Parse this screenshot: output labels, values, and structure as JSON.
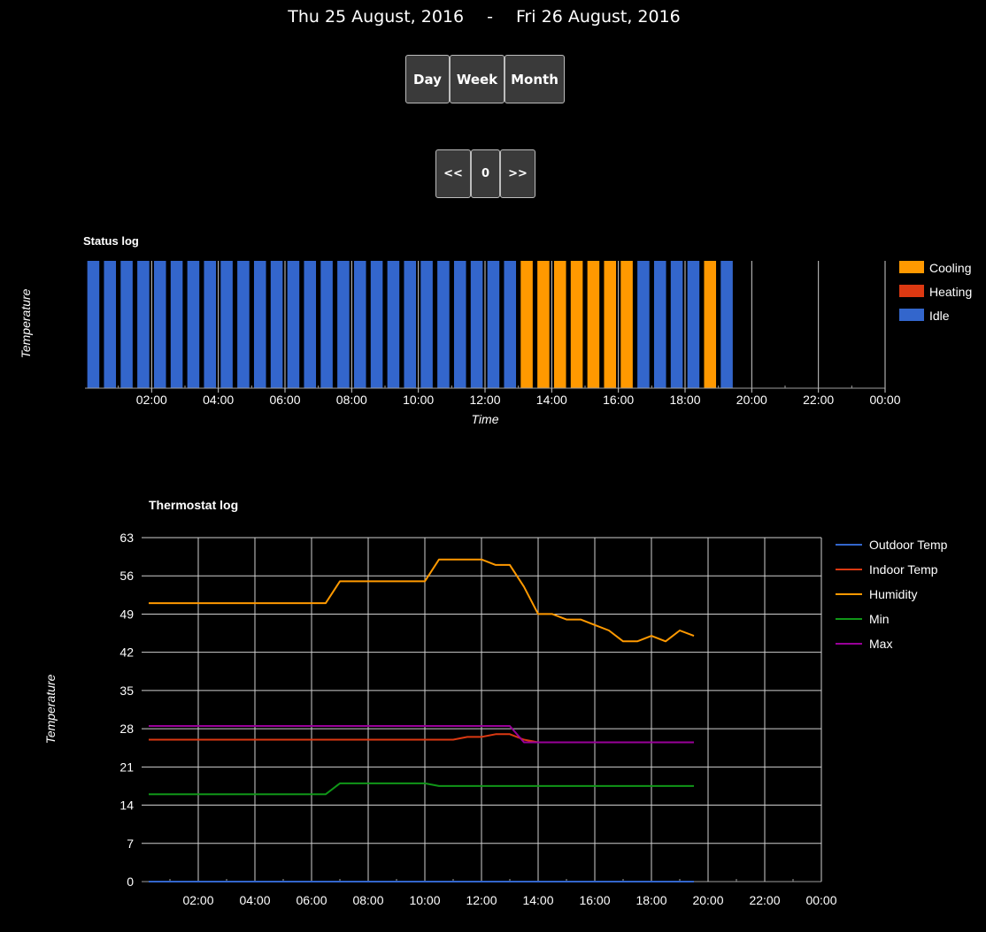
{
  "header": {
    "start_date": "Thu 25 August, 2016",
    "separator": "-",
    "end_date": "Fri 26 August, 2016"
  },
  "range_buttons": [
    "Day",
    "Week",
    "Month"
  ],
  "nav_buttons": {
    "prev": "<<",
    "offset": "0",
    "next": ">>"
  },
  "colors": {
    "cooling": "#ff9900",
    "heating": "#dc3912",
    "idle": "#3366cc",
    "outdoor": "#3366cc",
    "indoor": "#dc3912",
    "humidity": "#ff9900",
    "min": "#109618",
    "max": "#990099"
  },
  "chart_data": [
    {
      "type": "bar",
      "title": "Status log",
      "xlabel": "Time",
      "ylabel": "Temperature",
      "x_ticks": [
        "02:00",
        "04:00",
        "06:00",
        "08:00",
        "10:00",
        "12:00",
        "14:00",
        "16:00",
        "18:00",
        "20:00",
        "22:00",
        "00:00"
      ],
      "x_range_hours": [
        0,
        24
      ],
      "bar_start_hour": 0.25,
      "bar_step_hours": 0.5,
      "statuses": [
        "Idle",
        "Idle",
        "Idle",
        "Idle",
        "Idle",
        "Idle",
        "Idle",
        "Idle",
        "Idle",
        "Idle",
        "Idle",
        "Idle",
        "Idle",
        "Idle",
        "Idle",
        "Idle",
        "Idle",
        "Idle",
        "Idle",
        "Idle",
        "Idle",
        "Idle",
        "Idle",
        "Idle",
        "Idle",
        "Idle",
        "Cooling",
        "Cooling",
        "Cooling",
        "Cooling",
        "Cooling",
        "Cooling",
        "Cooling",
        "Idle",
        "Idle",
        "Idle",
        "Idle",
        "Cooling",
        "Idle"
      ],
      "legend": [
        "Cooling",
        "Heating",
        "Idle"
      ]
    },
    {
      "type": "line",
      "title": "Thermostat log",
      "xlabel": "",
      "ylabel": "Temperature",
      "x_ticks": [
        "02:00",
        "04:00",
        "06:00",
        "08:00",
        "10:00",
        "12:00",
        "14:00",
        "16:00",
        "18:00",
        "20:00",
        "22:00",
        "00:00"
      ],
      "x_range_hours": [
        0,
        24
      ],
      "y_ticks": [
        0,
        7,
        14,
        21,
        28,
        35,
        42,
        49,
        56,
        63
      ],
      "ylim": [
        0,
        63
      ],
      "series": [
        {
          "name": "Outdoor Temp",
          "key": "outdoor",
          "points": [
            [
              0.25,
              0
            ],
            [
              19.5,
              0
            ]
          ]
        },
        {
          "name": "Indoor Temp",
          "key": "indoor",
          "points": [
            [
              0.25,
              26
            ],
            [
              11,
              26
            ],
            [
              11.5,
              26.5
            ],
            [
              12,
              26.5
            ],
            [
              12.5,
              27
            ],
            [
              13,
              27
            ],
            [
              13.5,
              26
            ],
            [
              14,
              25.5
            ],
            [
              19.5,
              25.5
            ]
          ]
        },
        {
          "name": "Humidity",
          "key": "humidity",
          "points": [
            [
              0.25,
              51
            ],
            [
              6.5,
              51
            ],
            [
              7,
              55
            ],
            [
              10,
              55
            ],
            [
              10.5,
              59
            ],
            [
              12,
              59
            ],
            [
              12.5,
              58
            ],
            [
              13,
              58
            ],
            [
              13.5,
              54
            ],
            [
              14,
              49
            ],
            [
              14.5,
              49
            ],
            [
              15,
              48
            ],
            [
              15.5,
              48
            ],
            [
              16,
              47
            ],
            [
              16.5,
              46
            ],
            [
              17,
              44
            ],
            [
              17.5,
              44
            ],
            [
              18,
              45
            ],
            [
              18.5,
              44
            ],
            [
              19,
              46
            ],
            [
              19.5,
              45
            ]
          ]
        },
        {
          "name": "Min",
          "key": "min",
          "points": [
            [
              0.25,
              16
            ],
            [
              6.5,
              16
            ],
            [
              7,
              18
            ],
            [
              10,
              18
            ],
            [
              10.5,
              17.5
            ],
            [
              19.5,
              17.5
            ]
          ]
        },
        {
          "name": "Max",
          "key": "max",
          "points": [
            [
              0.25,
              28.5
            ],
            [
              13,
              28.5
            ],
            [
              13.5,
              25.5
            ],
            [
              19.5,
              25.5
            ]
          ]
        }
      ]
    }
  ]
}
